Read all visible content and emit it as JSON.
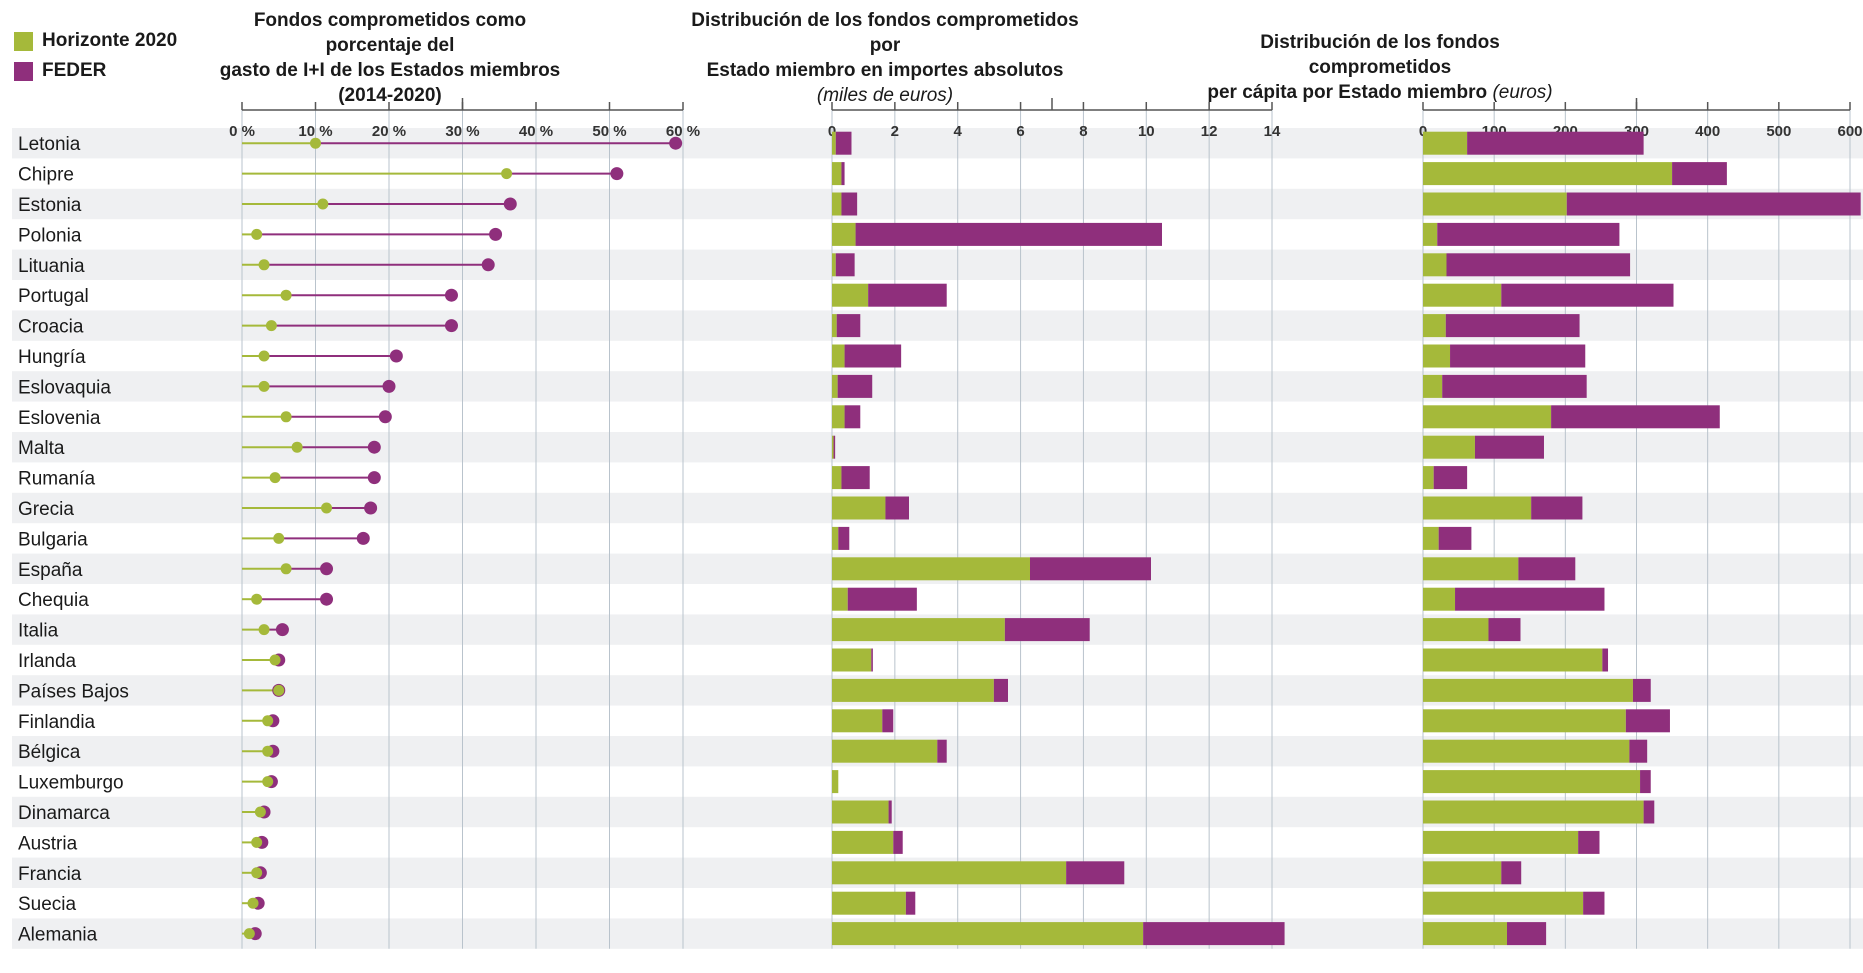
{
  "legend": [
    {
      "label": "Horizonte 2020",
      "color": "#a5b93a"
    },
    {
      "label": "FEDER",
      "color": "#8f2f7c"
    }
  ],
  "colors": {
    "h2020": "#a5b93a",
    "feder": "#8f2f7c",
    "stripe": "#eff0f2",
    "grid": "#b9c3cc",
    "axis": "#555555"
  },
  "panels": {
    "p1": {
      "title_line1": "Fondos comprometidos como porcentaje del",
      "title_line2": "gasto de I+I de los Estados miembros",
      "title_line3": "(2014-2020)"
    },
    "p2": {
      "title_line1": "Distribución de los fondos comprometidos por",
      "title_line2": "Estado miembro en importes absolutos",
      "subtitle": "(miles de euros)"
    },
    "p3": {
      "title_line1": "Distribución de los fondos comprometidos",
      "title_line2": "per cápita por Estado miembro",
      "unit": "(euros)"
    }
  },
  "chart_data": [
    {
      "type": "dot-range",
      "title": "Fondos comprometidos como porcentaje del gasto de I+I de los Estados miembros (2014-2020)",
      "xlim": [
        0,
        60
      ],
      "ticks": [
        "0 %",
        "10 %",
        "20 %",
        "30 %",
        "40 %",
        "50 %",
        "60 %"
      ],
      "categories": [
        "Letonia",
        "Chipre",
        "Estonia",
        "Polonia",
        "Lituania",
        "Portugal",
        "Croacia",
        "Hungría",
        "Eslovaquia",
        "Eslovenia",
        "Malta",
        "Rumanía",
        "Grecia",
        "Bulgaria",
        "España",
        "Chequia",
        "Italia",
        "Irlanda",
        "Países Bajos",
        "Finlandia",
        "Bélgica",
        "Luxemburgo",
        "Dinamarca",
        "Austria",
        "Francia",
        "Suecia",
        "Alemania"
      ],
      "series": [
        {
          "name": "Horizonte 2020",
          "values": [
            10,
            36,
            11,
            2,
            3,
            6,
            4,
            3,
            3,
            6,
            7.5,
            4.5,
            11.5,
            5,
            6,
            2,
            3,
            4.5,
            5,
            3.5,
            3.5,
            3.5,
            2.5,
            2,
            2,
            1.5,
            1
          ]
        },
        {
          "name": "FEDER",
          "values": [
            59,
            51,
            36.5,
            34.5,
            33.5,
            28.5,
            28.5,
            21,
            20,
            19.5,
            18,
            18,
            17.5,
            16.5,
            11.5,
            11.5,
            5.5,
            5,
            5,
            4.2,
            4.2,
            4,
            3,
            2.7,
            2.5,
            2.2,
            1.8
          ]
        }
      ]
    },
    {
      "type": "stacked-bar",
      "title": "Distribución de los fondos comprometidos por Estado miembro en importes absolutos",
      "subtitle": "(miles de euros)",
      "xlim": [
        0,
        14
      ],
      "ticks": [
        "0",
        "2",
        "4",
        "6",
        "8",
        "10",
        "12",
        "14"
      ],
      "categories": [
        "Letonia",
        "Chipre",
        "Estonia",
        "Polonia",
        "Lituania",
        "Portugal",
        "Croacia",
        "Hungría",
        "Eslovaquia",
        "Eslovenia",
        "Malta",
        "Rumanía",
        "Grecia",
        "Bulgaria",
        "España",
        "Chequia",
        "Italia",
        "Irlanda",
        "Países Bajos",
        "Finlandia",
        "Bélgica",
        "Luxemburgo",
        "Dinamarca",
        "Austria",
        "Francia",
        "Suecia",
        "Alemania"
      ],
      "series": [
        {
          "name": "Horizonte 2020",
          "values": [
            0.12,
            0.3,
            0.3,
            0.75,
            0.12,
            1.15,
            0.15,
            0.4,
            0.18,
            0.4,
            0.05,
            0.3,
            1.7,
            0.2,
            6.3,
            0.5,
            5.5,
            1.25,
            5.15,
            1.6,
            3.35,
            0.2,
            1.8,
            1.95,
            7.45,
            2.35,
            9.9
          ]
        },
        {
          "name": "FEDER",
          "values": [
            0.5,
            0.1,
            0.5,
            9.75,
            0.6,
            2.5,
            0.75,
            1.8,
            1.1,
            0.5,
            0.05,
            0.9,
            0.75,
            0.35,
            3.85,
            2.2,
            2.7,
            0.05,
            0.45,
            0.35,
            0.3,
            0.0,
            0.1,
            0.3,
            1.85,
            0.3,
            4.5
          ]
        }
      ]
    },
    {
      "type": "stacked-bar",
      "title": "Distribución de los fondos comprometidos per cápita por Estado miembro",
      "unit": "(euros)",
      "xlim": [
        0,
        600
      ],
      "ticks": [
        "0",
        "100",
        "200",
        "300",
        "400",
        "500",
        "600"
      ],
      "categories": [
        "Letonia",
        "Chipre",
        "Estonia",
        "Polonia",
        "Lituania",
        "Portugal",
        "Croacia",
        "Hungría",
        "Eslovaquia",
        "Eslovenia",
        "Malta",
        "Rumanía",
        "Grecia",
        "Bulgaria",
        "España",
        "Chequia",
        "Italia",
        "Irlanda",
        "Países Bajos",
        "Finlandia",
        "Bélgica",
        "Luxemburgo",
        "Dinamarca",
        "Austria",
        "Francia",
        "Suecia",
        "Alemania"
      ],
      "series": [
        {
          "name": "Horizonte 2020",
          "values": [
            62,
            350,
            202,
            20,
            33,
            110,
            32,
            38,
            27,
            180,
            73,
            15,
            152,
            22,
            134,
            45,
            92,
            252,
            295,
            285,
            290,
            305,
            310,
            218,
            110,
            225,
            118
          ]
        },
        {
          "name": "FEDER",
          "values": [
            248,
            77,
            413,
            256,
            258,
            242,
            188,
            190,
            203,
            237,
            97,
            47,
            72,
            46,
            80,
            210,
            45,
            8,
            25,
            62,
            25,
            15,
            15,
            30,
            28,
            30,
            55
          ]
        }
      ]
    }
  ]
}
